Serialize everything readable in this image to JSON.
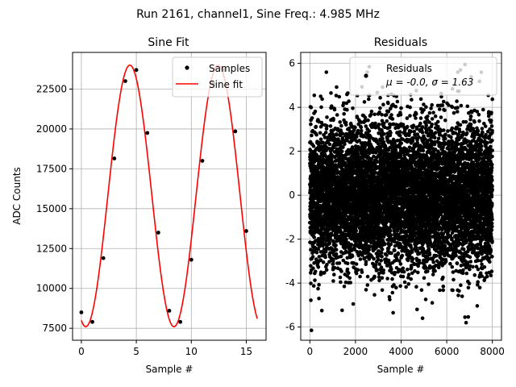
{
  "figure": {
    "suptitle": "Run 2161, channel1, Sine Freq.: 4.985 MHz"
  },
  "colors": {
    "fit_line": "#ff0000",
    "points": "#000000",
    "grid": "#b0b0b0",
    "frame": "#000000"
  },
  "chart_data": [
    {
      "type": "line",
      "title": "Sine Fit",
      "xlabel": "Sample #",
      "ylabel": "ADC Counts",
      "xlim": [
        -0.8,
        16.8
      ],
      "ylim": [
        6750,
        24800
      ],
      "x_ticks": [
        0,
        5,
        10,
        15
      ],
      "y_ticks": [
        7500,
        10000,
        12500,
        15000,
        17500,
        20000,
        22500
      ],
      "grid": true,
      "legend": {
        "position": "top-right",
        "entries": [
          "Samples",
          "Sine fit"
        ]
      },
      "series": [
        {
          "name": "Samples",
          "kind": "scatter",
          "x": [
            0,
            1,
            2,
            3,
            4,
            5,
            6,
            7,
            8,
            9,
            10,
            11,
            12,
            13,
            14,
            15
          ],
          "y": [
            8500,
            7900,
            11900,
            18150,
            23000,
            23700,
            19750,
            13500,
            8600,
            7900,
            11800,
            18000,
            22850,
            23700,
            19850,
            13600
          ]
        },
        {
          "name": "Sine fit",
          "kind": "line",
          "model": {
            "offset": 15800,
            "amplitude": 8200,
            "frequency_cycles_per_sample": 0.12462,
            "phase_rad": -1.885,
            "x_start": 0,
            "x_end": 16,
            "num_points": 321
          }
        }
      ]
    },
    {
      "type": "scatter",
      "title": "Residuals",
      "xlabel": "Sample #",
      "ylabel": "",
      "xlim": [
        -400,
        8400
      ],
      "ylim": [
        -6.6,
        6.5
      ],
      "x_ticks": [
        0,
        2000,
        4000,
        6000,
        8000
      ],
      "y_ticks": [
        -6,
        -4,
        -2,
        0,
        2,
        4,
        6
      ],
      "grid": true,
      "legend": {
        "position": "top-right",
        "entries": [
          "Residuals"
        ],
        "stats_line": "μ = -0.0, σ = 1.63"
      },
      "series": [
        {
          "name": "Residuals",
          "mean": 0.0,
          "sigma": 1.63,
          "x_range": [
            0,
            8000
          ],
          "num_points": 8000,
          "highlight_points": [
            {
              "x": 70,
              "y": -6.15
            },
            {
              "x": 6800,
              "y": 5.95
            },
            {
              "x": 2600,
              "y": 5.85
            },
            {
              "x": 6600,
              "y": 5.7
            },
            {
              "x": 4700,
              "y": -5.2
            },
            {
              "x": 6850,
              "y": -5.8
            },
            {
              "x": 6800,
              "y": -5.55
            },
            {
              "x": 3650,
              "y": -5.35
            },
            {
              "x": 1900,
              "y": -4.95
            },
            {
              "x": 400,
              "y": -4.7
            }
          ]
        }
      ]
    }
  ]
}
